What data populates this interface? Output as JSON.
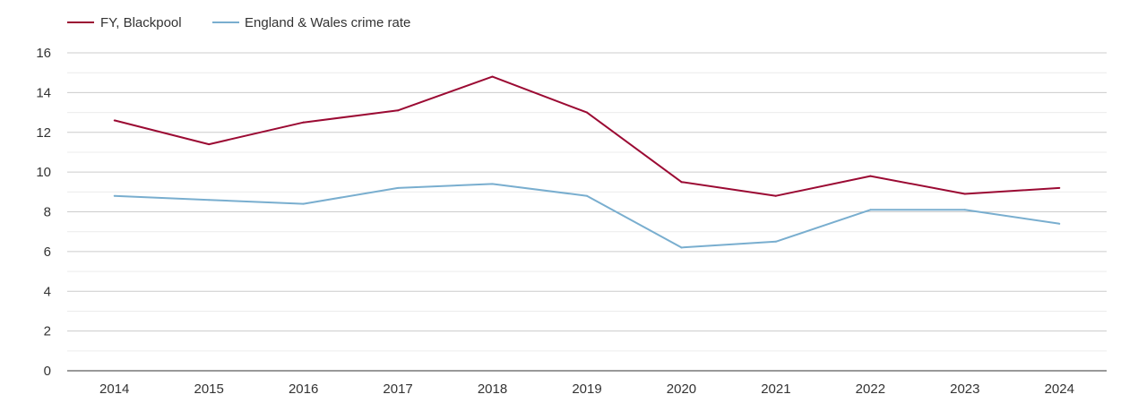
{
  "chart_data": {
    "type": "line",
    "title": "",
    "xlabel": "",
    "ylabel": "",
    "x": [
      "2014",
      "2015",
      "2016",
      "2017",
      "2018",
      "2019",
      "2020",
      "2021",
      "2022",
      "2023",
      "2024"
    ],
    "ylim": [
      0,
      16
    ],
    "y_ticks": [
      0,
      2,
      4,
      6,
      8,
      10,
      12,
      14,
      16
    ],
    "grid": true,
    "legend_position": "top-left",
    "series": [
      {
        "name": "FY, Blackpool",
        "color": "#9b0a33",
        "values": [
          12.6,
          11.4,
          12.5,
          13.1,
          14.8,
          13.0,
          9.5,
          8.8,
          9.8,
          8.9,
          9.2
        ]
      },
      {
        "name": "England & Wales crime rate",
        "color": "#79aecf",
        "values": [
          8.8,
          8.6,
          8.4,
          9.2,
          9.4,
          8.8,
          6.2,
          6.5,
          8.1,
          8.1,
          7.4
        ]
      }
    ]
  }
}
